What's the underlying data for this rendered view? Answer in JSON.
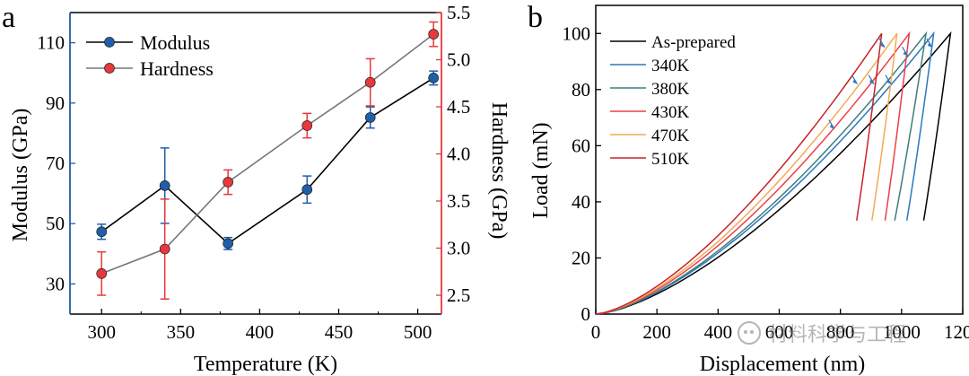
{
  "panel_labels": {
    "a": "a",
    "b": "b"
  },
  "watermark": {
    "text": "材料科学与工程"
  },
  "chart_data": [
    {
      "type": "line",
      "id": "a",
      "title": "",
      "xlabel": "Temperature (K)",
      "ylabel": "Modulus (GPa)",
      "y2label": "Hardness (GPa)",
      "xlim": [
        280,
        515
      ],
      "ylim": [
        20,
        120
      ],
      "y2lim": [
        2.3,
        5.5
      ],
      "xticks": [
        300,
        350,
        400,
        450,
        500
      ],
      "yticks": [
        30,
        50,
        70,
        90,
        110
      ],
      "y2ticks": [
        2.5,
        3.0,
        3.5,
        4.0,
        4.5,
        5.0,
        5.5
      ],
      "x": [
        300,
        340,
        380,
        430,
        470,
        510
      ],
      "legend_position": "top-left",
      "series": [
        {
          "name": "Modulus",
          "axis": "left",
          "color": "#000000",
          "marker": "#1f5fa8",
          "values": [
            47.3,
            62.6,
            43.4,
            61.3,
            85.2,
            98.3
          ],
          "errors": [
            2.5,
            12.5,
            2.0,
            4.5,
            3.5,
            2.3
          ]
        },
        {
          "name": "Hardness",
          "axis": "right",
          "color": "#777777",
          "marker": "#e8383d",
          "values": [
            2.73,
            2.99,
            3.7,
            4.3,
            4.76,
            5.27
          ],
          "errors": [
            0.23,
            0.53,
            0.13,
            0.13,
            0.25,
            0.13
          ]
        }
      ]
    },
    {
      "type": "line",
      "id": "b",
      "title": "",
      "xlabel": "Displacement (nm)",
      "ylabel": "Load (mN)",
      "xlim": [
        0,
        1200
      ],
      "ylim": [
        0,
        110
      ],
      "xticks": [
        0,
        200,
        400,
        600,
        800,
        1000,
        1200
      ],
      "yticks": [
        0,
        20,
        40,
        60,
        80,
        100
      ],
      "legend_position": "top-left",
      "series": [
        {
          "name": "As-prepared",
          "color": "#000000",
          "max_disp": 1160,
          "final_disp": 1010
        },
        {
          "name": "340K",
          "color": "#2a78c0",
          "max_disp": 1105,
          "final_disp": 955
        },
        {
          "name": "380K",
          "color": "#3f7d7a",
          "max_disp": 1080,
          "final_disp": 905
        },
        {
          "name": "430K",
          "color": "#e94049",
          "max_disp": 1025,
          "final_disp": 890
        },
        {
          "name": "470K",
          "color": "#f4a955",
          "max_disp": 985,
          "final_disp": 845
        },
        {
          "name": "510K",
          "color": "#c8222a",
          "max_disp": 935,
          "final_disp": 795
        }
      ],
      "peak_load": 100,
      "annotations": [
        {
          "type": "arrow",
          "x": 945,
          "y": 95
        },
        {
          "type": "arrow",
          "x": 1020,
          "y": 92
        },
        {
          "type": "arrow",
          "x": 1100,
          "y": 95
        },
        {
          "type": "arrow",
          "x": 910,
          "y": 82
        },
        {
          "type": "arrow",
          "x": 855,
          "y": 82
        },
        {
          "type": "arrow",
          "x": 965,
          "y": 82
        },
        {
          "type": "arrow",
          "x": 780,
          "y": 66
        }
      ]
    }
  ]
}
